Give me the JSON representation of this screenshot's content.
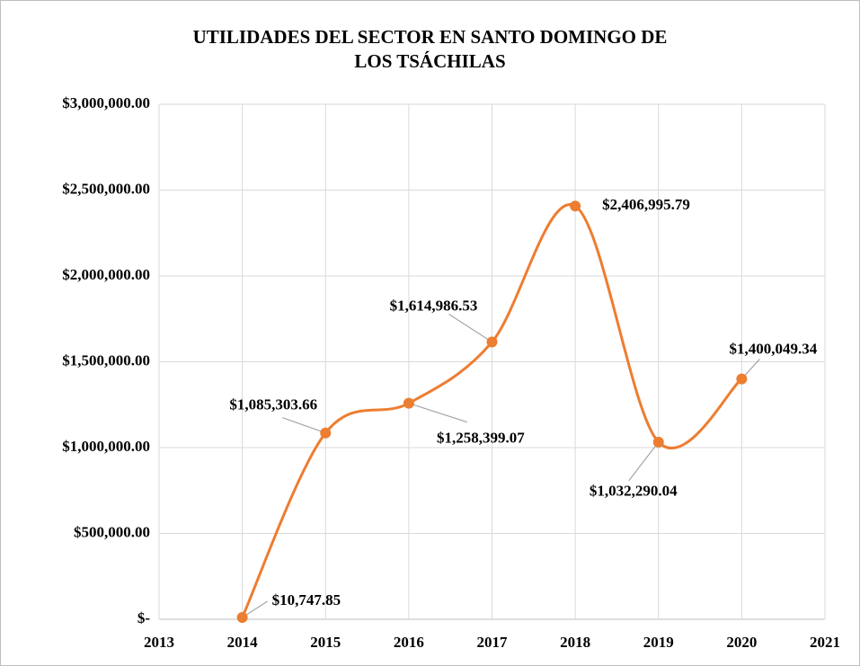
{
  "chart_data": {
    "type": "line",
    "title": "UTILIDADES DEL SECTOR EN SANTO DOMINGO DE LOS TSÁCHILAS",
    "x": [
      2014,
      2015,
      2016,
      2017,
      2018,
      2019,
      2020
    ],
    "series": [
      {
        "color": "#ed7d31",
        "values": [
          10747.85,
          1085303.66,
          1258399.07,
          1614986.53,
          2406995.79,
          1032290.04,
          1400049.34
        ],
        "value_labels": [
          "$10,747.85",
          "$1,085,303.66",
          "$1,258,399.07",
          "$1,614,986.53",
          "$2,406,995.79",
          "$1,032,290.04",
          "$1,400,049.34"
        ]
      }
    ],
    "xlim": [
      2013,
      2021
    ],
    "xticks": [
      2013,
      2014,
      2015,
      2016,
      2017,
      2018,
      2019,
      2020,
      2021
    ],
    "ylim": [
      0,
      3000000
    ],
    "yticks": [
      {
        "value": 0,
        "label": "$-"
      },
      {
        "value": 500000,
        "label": "$500,000.00"
      },
      {
        "value": 1000000,
        "label": "$1,000,000.00"
      },
      {
        "value": 1500000,
        "label": "$1,500,000.00"
      },
      {
        "value": 2000000,
        "label": "$2,000,000.00"
      },
      {
        "value": 2500000,
        "label": "$2,500,000.00"
      },
      {
        "value": 3000000,
        "label": "$3,000,000.00"
      }
    ],
    "grid": true,
    "smooth": true
  }
}
